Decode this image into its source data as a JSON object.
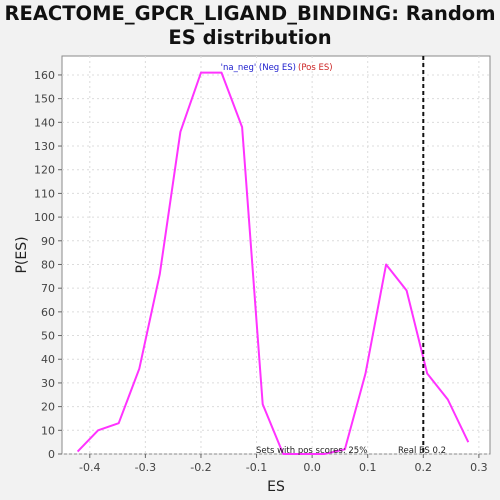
{
  "chart_data": {
    "type": "line",
    "title_line1": "REACTOME_GPCR_LIGAND_BINDING: Random",
    "title_line2": "ES distribution",
    "xlabel": "ES",
    "ylabel": "P(ES)",
    "xlim": [
      -0.45,
      0.32
    ],
    "ylim": [
      0,
      168
    ],
    "x_ticks": [
      -0.4,
      -0.3,
      -0.2,
      -0.1,
      0.0,
      0.1,
      0.2,
      0.3
    ],
    "x_tick_labels": [
      "-0.4",
      "-0.3",
      "-0.2",
      "-0.1",
      "0.0",
      "0.1",
      "0.2",
      "0.3"
    ],
    "y_ticks": [
      0,
      10,
      20,
      30,
      40,
      50,
      60,
      70,
      80,
      90,
      100,
      110,
      120,
      130,
      140,
      150,
      160
    ],
    "y_tick_labels": [
      "0",
      "10",
      "20",
      "30",
      "40",
      "50",
      "60",
      "70",
      "80",
      "90",
      "100",
      "110",
      "120",
      "130",
      "140",
      "150",
      "160"
    ],
    "grid": true,
    "series": [
      {
        "color": "#ff33ff",
        "x": [
          -0.422,
          -0.385,
          -0.348,
          -0.311,
          -0.274,
          -0.237,
          -0.2,
          -0.163,
          -0.126,
          -0.089,
          -0.052,
          -0.015,
          0.022,
          0.059,
          0.096,
          0.133,
          0.17,
          0.207,
          0.244,
          0.281
        ],
        "y": [
          1,
          10,
          13,
          36,
          76,
          136,
          161,
          161,
          138,
          21,
          0,
          0,
          0,
          2,
          34,
          80,
          69,
          34,
          23,
          5
        ]
      }
    ],
    "real_es": {
      "x": 0.2,
      "label": "Real ES 0.2"
    },
    "legend": {
      "neg": "'na_neg' (Neg ES)",
      "pos": "(Pos ES)",
      "neg_color": "#1a1acc",
      "pos_color": "#cc2222"
    },
    "annotation": "Sets with pos scores: 25%"
  }
}
